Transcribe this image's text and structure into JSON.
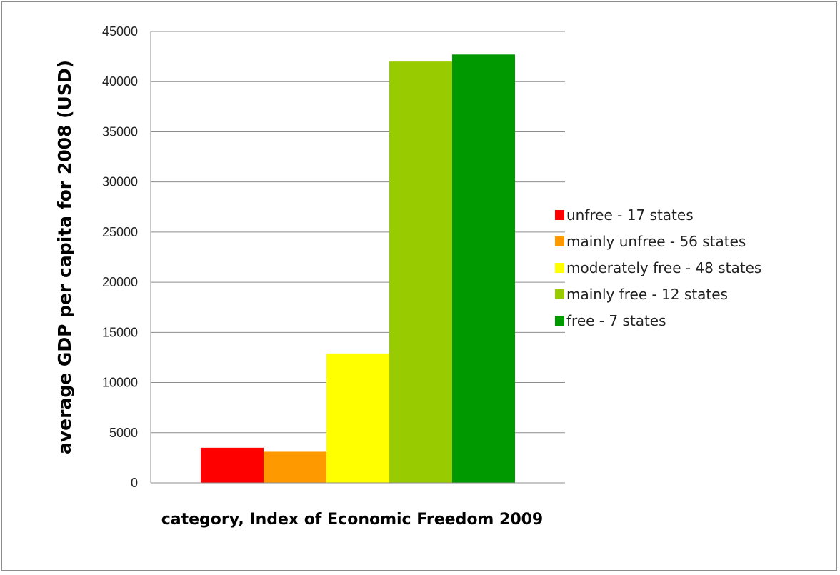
{
  "chart_data": {
    "type": "bar",
    "title": "",
    "xlabel": "category, Index of Economic Freedom 2009",
    "ylabel": "average GDP per capita for 2008 (USD)",
    "ylim": [
      0,
      45000
    ],
    "yticks": [
      0,
      5000,
      10000,
      15000,
      20000,
      25000,
      30000,
      35000,
      40000,
      45000
    ],
    "grid": true,
    "legend_position": "right",
    "series": [
      {
        "name": "unfree - 17 states",
        "value": 3500,
        "color": "#ff0000"
      },
      {
        "name": "mainly unfree - 56 states",
        "value": 3100,
        "color": "#ff9900"
      },
      {
        "name": "moderately free - 48 states",
        "value": 12900,
        "color": "#ffff00"
      },
      {
        "name": "mainly free - 12 states",
        "value": 42000,
        "color": "#99cc00"
      },
      {
        "name": "free - 7 states",
        "value": 42700,
        "color": "#009900"
      }
    ]
  }
}
